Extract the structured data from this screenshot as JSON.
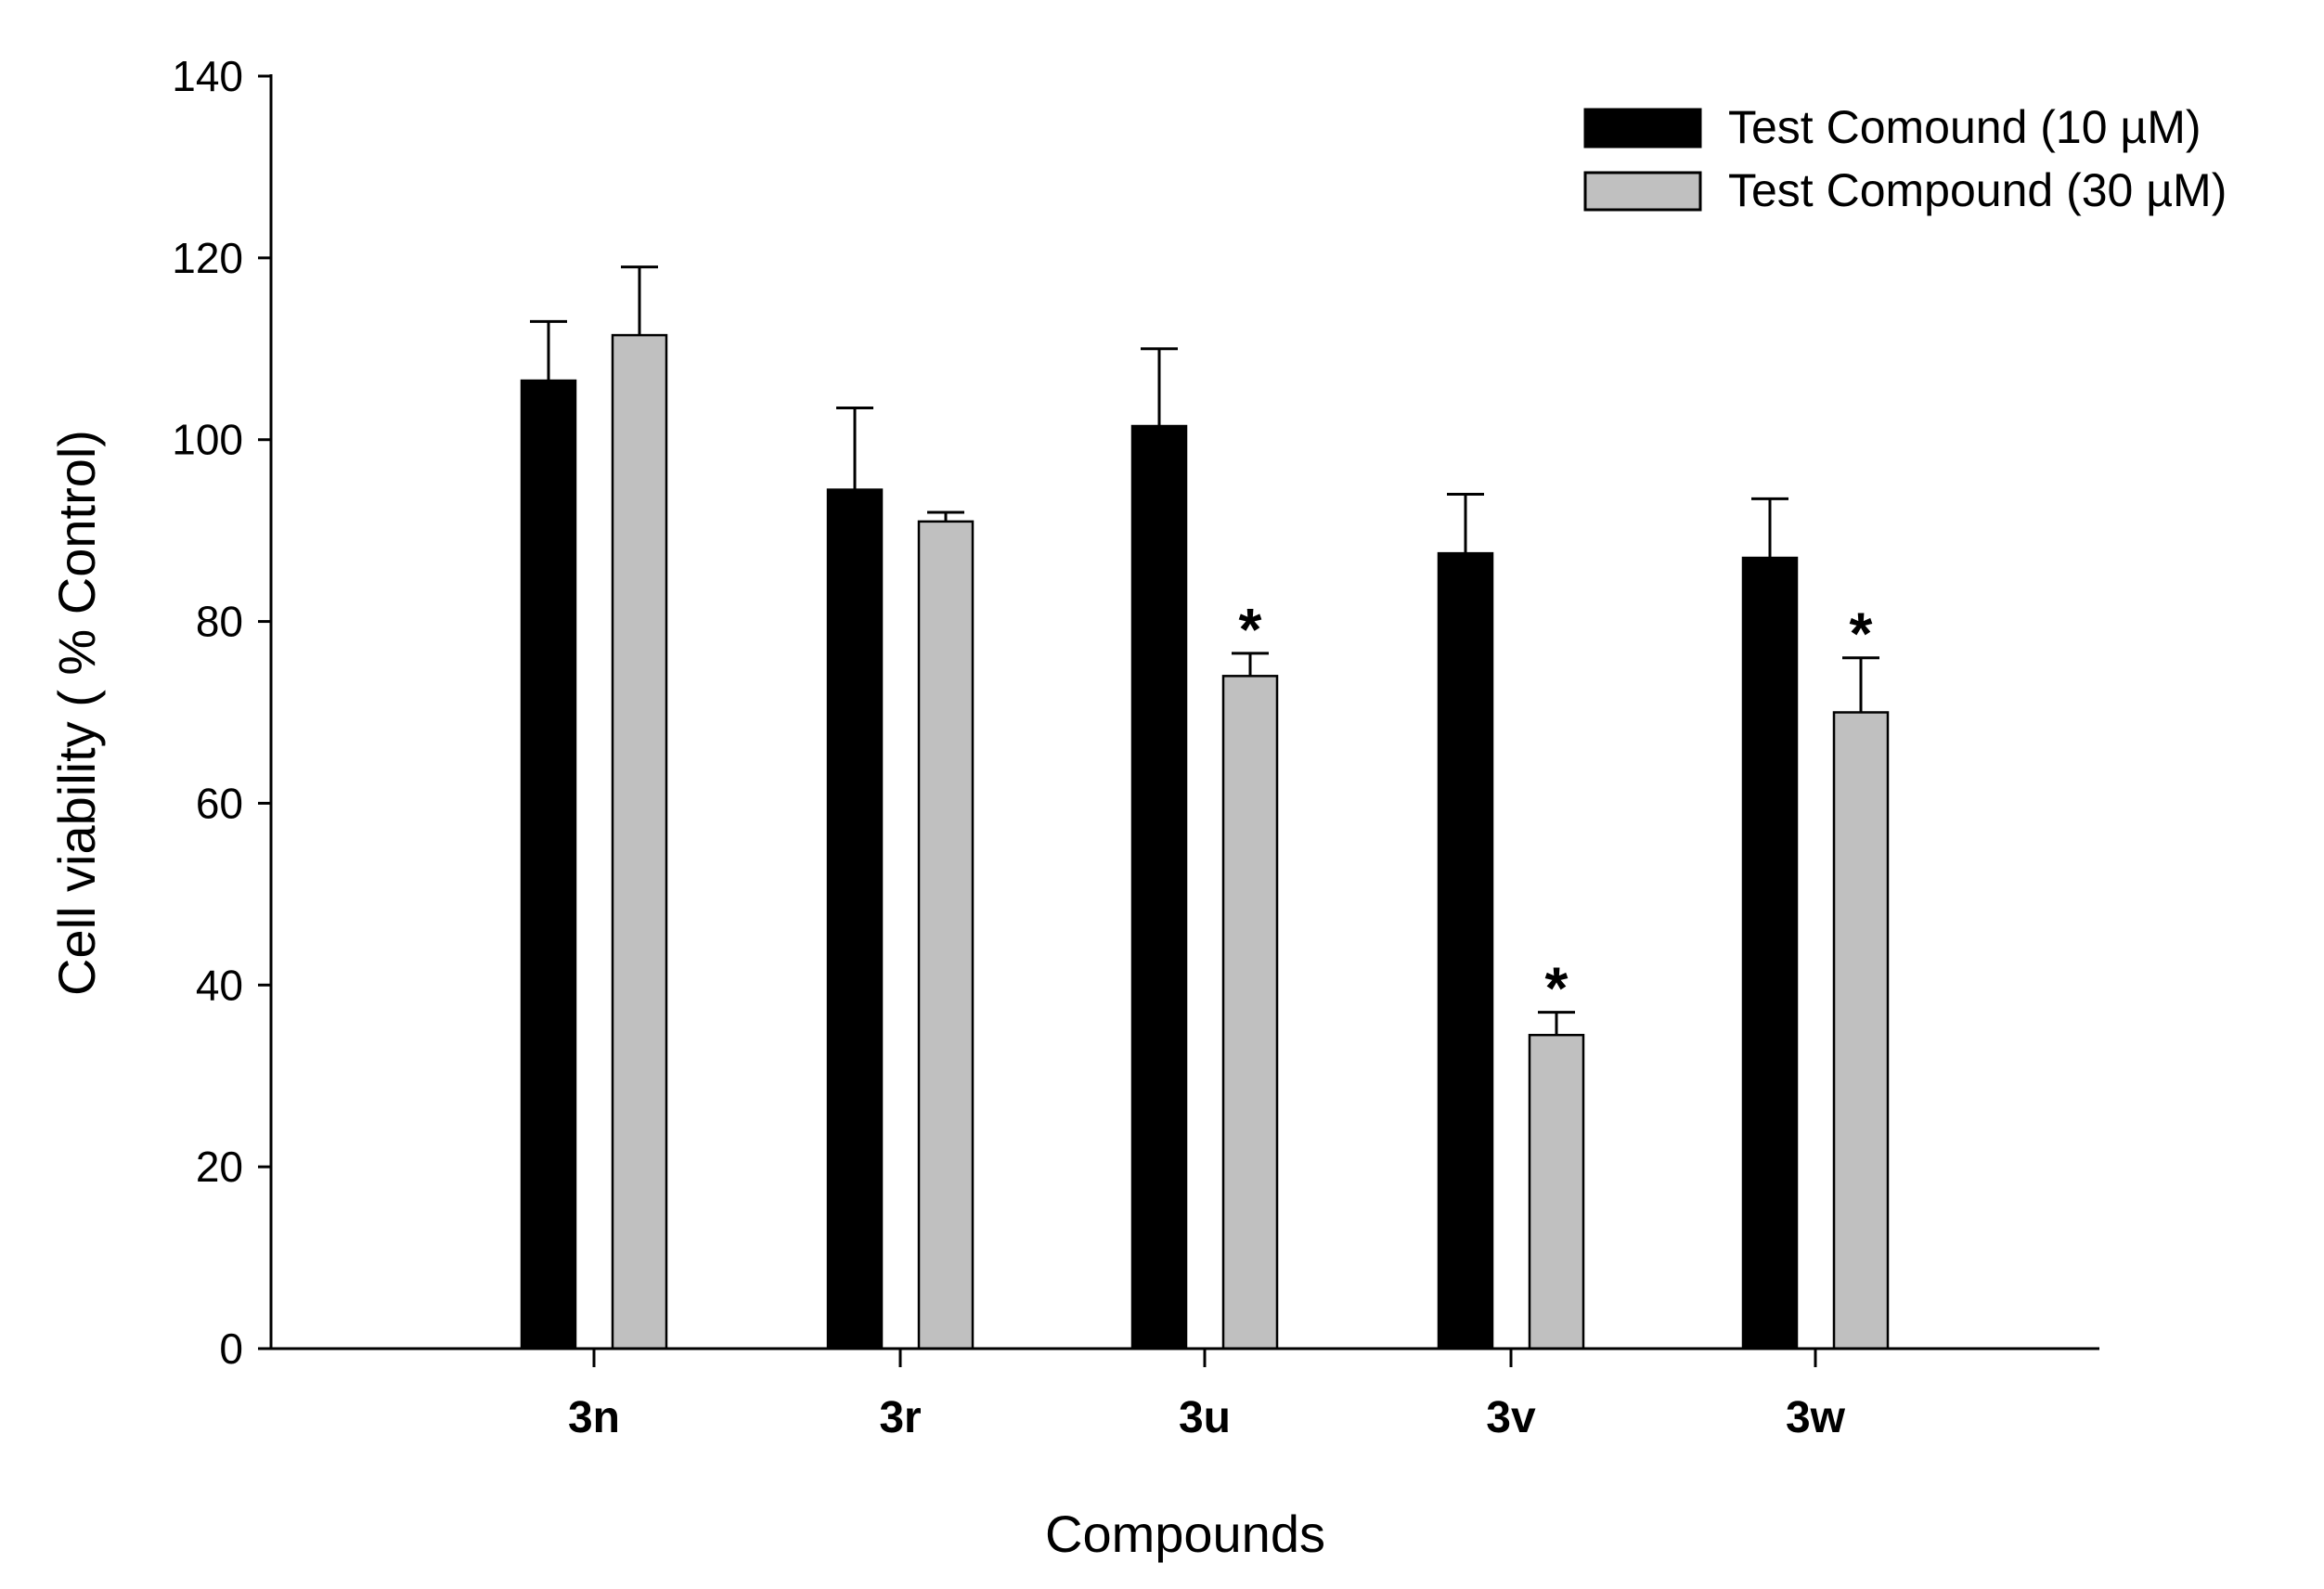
{
  "chart_data": {
    "type": "bar",
    "title": "",
    "xlabel": "Compounds",
    "ylabel": "Cell viability ( % Control)",
    "categories": [
      "3n",
      "3r",
      "3u",
      "3v",
      "3w"
    ],
    "ylim": [
      0,
      140
    ],
    "yticks": [
      0,
      20,
      40,
      60,
      80,
      100,
      120,
      140
    ],
    "grid": false,
    "legend_position": "top-right",
    "series": [
      {
        "name": "Test Comound (10 µM)",
        "color": "#000000",
        "values": [
          106.5,
          94.5,
          101.5,
          87.5,
          87.0
        ],
        "errors": [
          6.5,
          9.0,
          8.5,
          6.5,
          6.5
        ],
        "significance": [
          "",
          "",
          "",
          "",
          ""
        ]
      },
      {
        "name": "Test Compound (30 µM)",
        "color": "#c0c0c0",
        "values": [
          111.5,
          91.0,
          74.0,
          34.5,
          70.0
        ],
        "errors": [
          7.5,
          1.0,
          2.5,
          2.5,
          6.0
        ],
        "significance": [
          "",
          "",
          "*",
          "*",
          "*"
        ]
      }
    ]
  }
}
